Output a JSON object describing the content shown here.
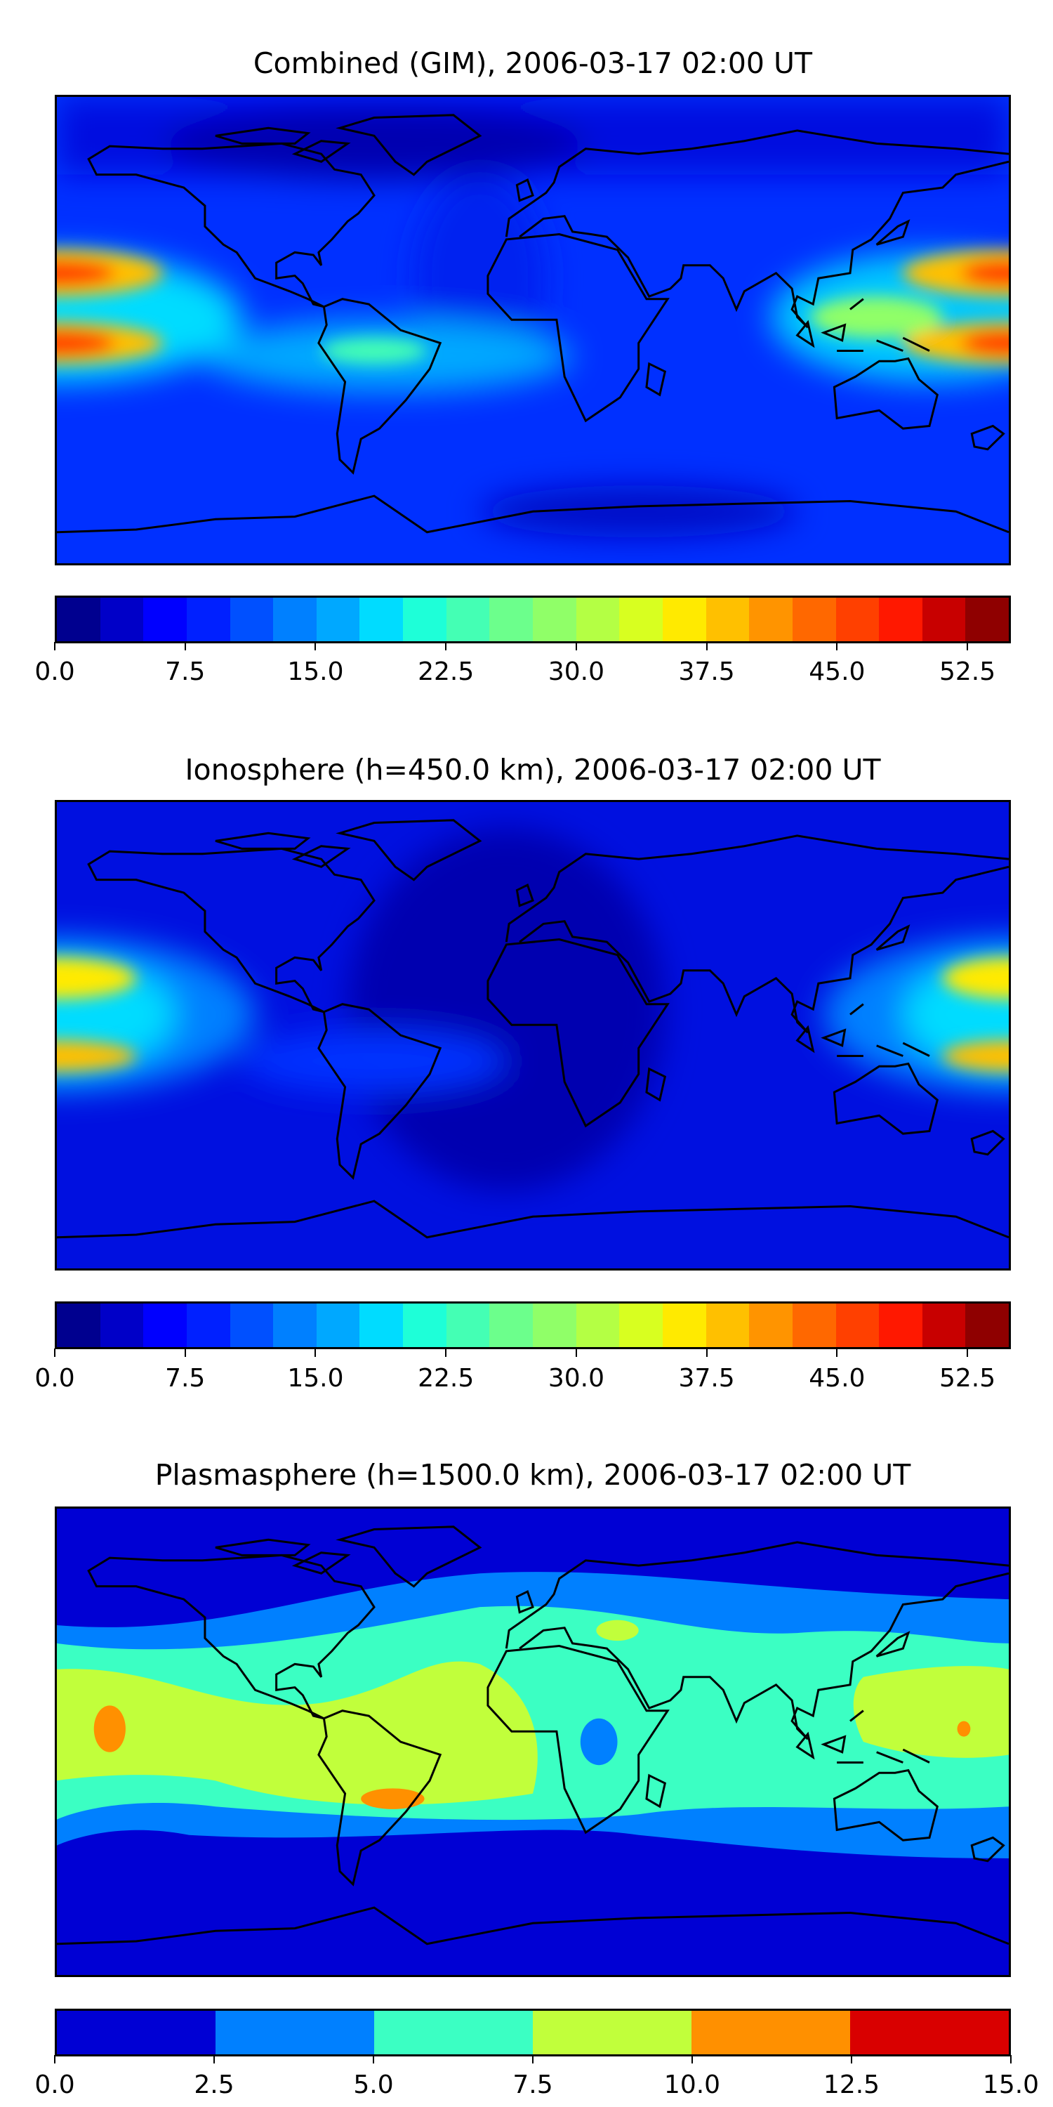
{
  "chart_data": [
    {
      "type": "heatmap",
      "title": "Combined (GIM), 2006-03-17 02:00 UT",
      "colormap": "jet",
      "clim": [
        0,
        55
      ],
      "level_step": 2.5,
      "tick_labels": [
        "0.0",
        "7.5",
        "15.0",
        "22.5",
        "30.0",
        "37.5",
        "45.0",
        "52.5"
      ],
      "colors": [
        "#00008f",
        "#0000c8",
        "#0000ff",
        "#0020ff",
        "#0050ff",
        "#0080ff",
        "#00a8ff",
        "#00dcff",
        "#1effd8",
        "#44ffb4",
        "#6cff8c",
        "#90ff68",
        "#b4ff44",
        "#d8ff20",
        "#ffea00",
        "#ffc000",
        "#ff9400",
        "#ff6800",
        "#ff4000",
        "#ff1800",
        "#c80000",
        "#8f0000"
      ]
    },
    {
      "type": "heatmap",
      "title": "Ionosphere  (h=450.0 km), 2006-03-17 02:00 UT",
      "colormap": "jet",
      "clim": [
        0,
        55
      ],
      "level_step": 2.5,
      "tick_labels": [
        "0.0",
        "7.5",
        "15.0",
        "22.5",
        "30.0",
        "37.5",
        "45.0",
        "52.5"
      ],
      "colors": [
        "#00008f",
        "#0000c8",
        "#0000ff",
        "#0020ff",
        "#0050ff",
        "#0080ff",
        "#00a8ff",
        "#00dcff",
        "#1effd8",
        "#44ffb4",
        "#6cff8c",
        "#90ff68",
        "#b4ff44",
        "#d8ff20",
        "#ffea00",
        "#ffc000",
        "#ff9400",
        "#ff6800",
        "#ff4000",
        "#ff1800",
        "#c80000",
        "#8f0000"
      ]
    },
    {
      "type": "heatmap",
      "title": "Plasmasphere (h=1500.0 km), 2006-03-17 02:00 UT",
      "colormap": "jet",
      "clim": [
        0,
        15
      ],
      "level_step": 2.5,
      "tick_labels": [
        "0.0",
        "2.5",
        "5.0",
        "7.5",
        "10.0",
        "12.5",
        "15.0"
      ],
      "colors": [
        "#0000d4",
        "#0080ff",
        "#3bffc3",
        "#c1ff3b",
        "#ff9000",
        "#d90000"
      ]
    }
  ]
}
